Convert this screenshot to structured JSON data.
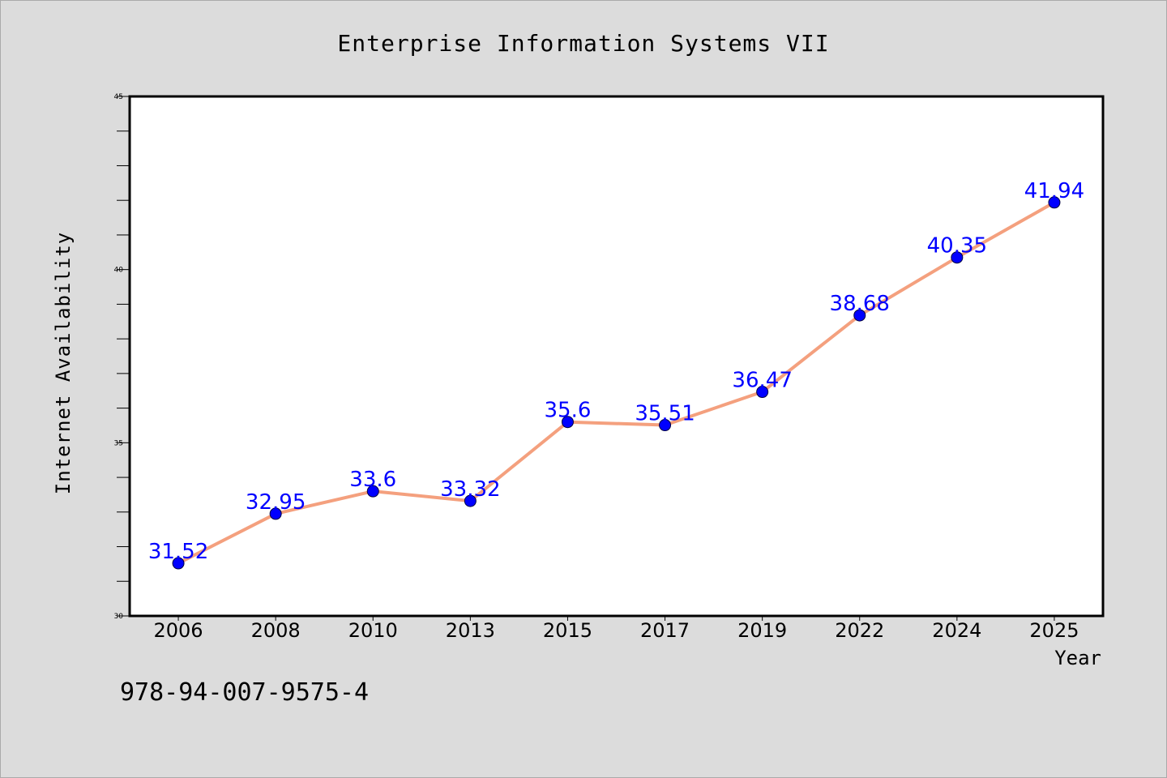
{
  "chart_data": {
    "type": "line",
    "title": "Enterprise Information Systems VII",
    "xlabel": "Year",
    "ylabel": "Internet Availability",
    "categories": [
      "2006",
      "2008",
      "2010",
      "2013",
      "2015",
      "2017",
      "2019",
      "2022",
      "2024",
      "2025"
    ],
    "series": [
      {
        "values": [
          31.52,
          32.95,
          33.6,
          33.32,
          35.6,
          35.51,
          36.47,
          38.68,
          40.35,
          41.94
        ],
        "labels": [
          "31.52",
          "32.95",
          "33.6",
          "33.32",
          "35.6",
          "35.51",
          "36.47",
          "38.68",
          "40.35",
          "41.94"
        ]
      }
    ],
    "ylim": [
      30,
      45
    ],
    "yticks": [
      "30",
      "35",
      "40",
      "45"
    ],
    "grid": false,
    "line_color": "#f4a07e",
    "marker_color": "#0000ff",
    "label_color": "#0000ff"
  },
  "footer": {
    "isbn": "978-94-007-9575-4"
  }
}
